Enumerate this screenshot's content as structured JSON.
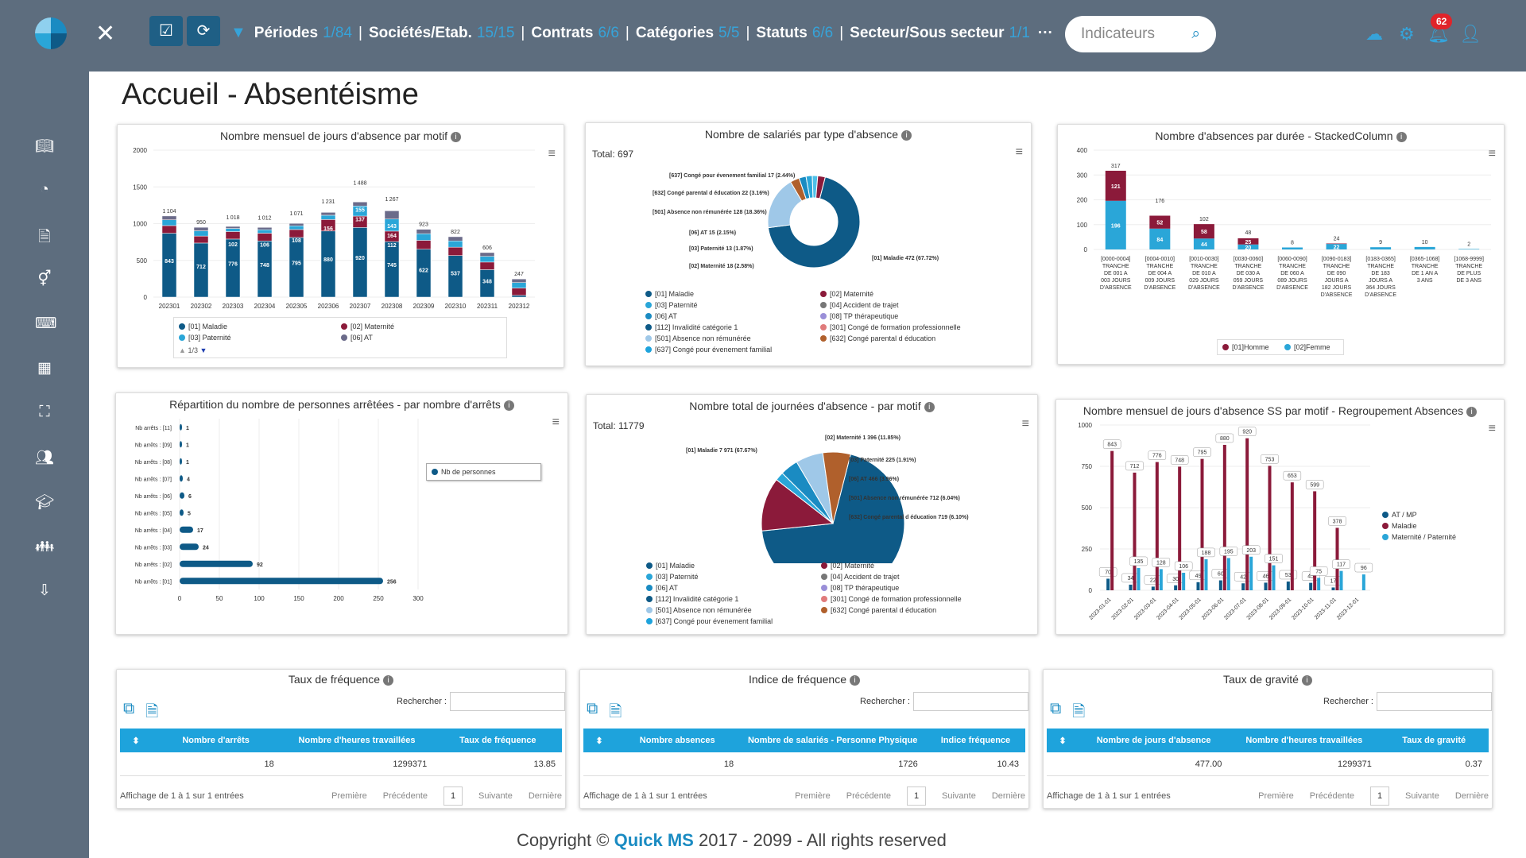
{
  "topbar": {
    "filters": [
      {
        "label": "Périodes",
        "count": "1/84"
      },
      {
        "label": "Sociétés/Etab.",
        "count": "15/15"
      },
      {
        "label": "Contrats",
        "count": "6/6"
      },
      {
        "label": "Catégories",
        "count": "5/5"
      },
      {
        "label": "Statuts",
        "count": "6/6"
      },
      {
        "label": "Secteur/Sous secteur",
        "count": "1/1"
      }
    ],
    "more": "···",
    "search_placeholder": "Indicateurs",
    "notif_count": "62"
  },
  "page_title": "Accueil - Absentéisme",
  "footer": {
    "prefix": "Copyright ©",
    "brand": "Quick MS",
    "suffix": "2017 - 2099 - All rights reserved"
  },
  "panels": {
    "p1": {
      "title": "Nombre mensuel de jours d'absence par motif",
      "legend": [
        "[01] Maladie",
        "[02] Maternité",
        "[03] Paternité",
        "[06] AT"
      ],
      "legend_pager": "1/3"
    },
    "p2": {
      "title": "Nombre de salariés par type d'absence",
      "total": "Total: 697"
    },
    "p3": {
      "title": "Nombre d'absences par durée - StackedColumn",
      "legend": [
        "[01]Homme",
        "[02]Femme"
      ]
    },
    "p4": {
      "title": "Répartition du nombre de personnes arrêtées - par nombre d'arrêts",
      "legend": [
        "Nb de personnes"
      ]
    },
    "p5": {
      "title": "Nombre total de journées d'absence - par motif",
      "total": "Total: 11779"
    },
    "p6": {
      "title": "Nombre mensuel de jours d'absence SS par motif - Regroupement Absences",
      "legend": [
        "AT / MP",
        "Maladie",
        "Maternité / Paternité"
      ]
    }
  },
  "pie_legend": [
    "[01] Maladie",
    "[02] Maternité",
    "[03] Paternité",
    "[04] Accident de trajet",
    "[06] AT",
    "[08] TP thérapeutique",
    "[112] Invalidité catégorie 1",
    "[301] Congé de formation professionnelle",
    "[501] Absence non rémunérée",
    "[632] Congé parental d éducation",
    "[637] Congé pour évenement familial"
  ],
  "tables": [
    {
      "title": "Taux de fréquence",
      "search_label": "Rechercher :",
      "columns": [
        "Nombre d'arrêts",
        "Nombre d'heures travaillées",
        "Taux de fréquence"
      ],
      "row": [
        "18",
        "1299371",
        "13.85"
      ],
      "info": "Affichage de 1 à 1 sur 1 entrées",
      "pager": [
        "Première",
        "Précédente",
        "1",
        "Suivante",
        "Dernière"
      ]
    },
    {
      "title": "Indice de fréquence",
      "search_label": "Rechercher :",
      "columns": [
        "Nombre absences",
        "Nombre de salariés - Personne Physique",
        "Indice fréquence"
      ],
      "row": [
        "18",
        "1726",
        "10.43"
      ],
      "info": "Affichage de 1 à 1 sur 1 entrées",
      "pager": [
        "Première",
        "Précédente",
        "1",
        "Suivante",
        "Dernière"
      ]
    },
    {
      "title": "Taux de gravité",
      "search_label": "Rechercher :",
      "columns": [
        "Nombre de jours d'absence",
        "Nombre d'heures travaillées",
        "Taux de gravité"
      ],
      "row": [
        "477.00",
        "1299371",
        "0.37"
      ],
      "info": "Affichage de 1 à 1 sur 1 entrées",
      "pager": [
        "Première",
        "Précédente",
        "1",
        "Suivante",
        "Dernière"
      ]
    }
  ],
  "colors": {
    "maladie": "#0e5a87",
    "maternite": "#8b1a3a",
    "paternite": "#2aa6d8",
    "at": "#6b6b8a",
    "homme": "#8b1a3a",
    "femme": "#2aa6d8"
  },
  "chart_data": [
    {
      "type": "bar",
      "title": "Nombre mensuel de jours d'absence par motif",
      "categories": [
        "202301",
        "202302",
        "202303",
        "202304",
        "202305",
        "202306",
        "202307",
        "202308",
        "202309",
        "202310",
        "202311",
        "202312"
      ],
      "totals": [
        1104,
        950,
        1018,
        1012,
        1071,
        1231,
        1488,
        1267,
        923,
        822,
        606,
        247
      ],
      "series": [
        {
          "name": "[01] Maladie",
          "values": [
            843,
            712,
            776,
            748,
            795,
            880,
            920,
            745,
            622,
            537,
            348,
            null
          ]
        },
        {
          "name": "[02] Maternité",
          "values": [
            null,
            null,
            102,
            106,
            108,
            156,
            155,
            143,
            null,
            null,
            null,
            null
          ]
        },
        {
          "name": "[03] Paternité",
          "values": [
            null,
            null,
            null,
            null,
            null,
            null,
            137,
            164,
            null,
            null,
            null,
            null
          ]
        },
        {
          "name": "[06] AT",
          "values": [
            null,
            null,
            null,
            null,
            null,
            null,
            null,
            112,
            null,
            null,
            null,
            null
          ]
        }
      ],
      "ylim": [
        0,
        2000
      ]
    },
    {
      "type": "pie",
      "title": "Nombre de salariés par type d'absence",
      "labels": [
        "[01] Maladie",
        "[501] Absence non rémunérée",
        "[632] Congé parental d éducation",
        "[637] Congé pour évenement familial",
        "[06] AT",
        "[03] Paternité",
        "[02] Maternité"
      ],
      "values": [
        472,
        128,
        22,
        17,
        15,
        13,
        18
      ],
      "annotations": [
        "[01] Maladie 472 (67.72%)",
        "[501] Absence non rémunérée 128 (18.36%)",
        "[632] Congé parental d éducation 22 (3.16%)",
        "[637] Congé pour évenement familial 17 (2.44%)",
        "[06] AT 15 (2.15%)",
        "[03] Paternité 13 (1.87%)",
        "[02] Maternité 18 (2.58%)"
      ]
    },
    {
      "type": "bar",
      "title": "Nombre d'absences par durée - StackedColumn",
      "categories": [
        "[0000-0004] TRANCHE DE 001 A 003 JOURS D'ABSENCE",
        "[0004-0010] TRANCHE DE 004 A 009 JOURS D'ABSENCE",
        "[0010-0030] TRANCHE DE 010 A 029 JOURS D'ABSENCE",
        "[0030-0060] TRANCHE DE 030 A 059 JOURS D'ABSENCE",
        "[0060-0090] TRANCHE DE 060 A 089 JOURS D'ABSENCE",
        "[0090-0183] TRANCHE DE 090 JOURS A 182 JOURS D'ABSENCE",
        "[0183-0365] TRANCHE DE 183 JOURS A 364 JOURS D'ABSENCE",
        "[0365-1068] TRANCHE DE 1 AN A 3 ANS",
        "[1068-9999] TRANCHE DE PLUS DE 3 ANS"
      ],
      "totals": [
        317,
        176,
        102,
        48,
        8,
        24,
        9,
        10,
        2
      ],
      "series": [
        {
          "name": "[01]Homme",
          "values": [
            121,
            52,
            58,
            25,
            null,
            null,
            null,
            null,
            null
          ]
        },
        {
          "name": "[02]Femme",
          "values": [
            196,
            84,
            44,
            20,
            null,
            22,
            null,
            null,
            null
          ]
        }
      ],
      "ylim": [
        0,
        400
      ]
    },
    {
      "type": "bar",
      "orientation": "horizontal",
      "title": "Répartition du nombre de personnes arrêtées - par nombre d'arrêts",
      "categories": [
        "Nb arrêts : [11]",
        "Nb arrêts : [09]",
        "Nb arrêts : [08]",
        "Nb arrêts : [07]",
        "Nb arrêts : [06]",
        "Nb arrêts : [05]",
        "Nb arrêts : [04]",
        "Nb arrêts : [03]",
        "Nb arrêts : [02]",
        "Nb arrêts : [01]"
      ],
      "values": [
        1,
        1,
        1,
        4,
        6,
        5,
        17,
        24,
        92,
        256
      ],
      "xlim": [
        0,
        300
      ],
      "xticks": [
        "0",
        "50",
        "100",
        "150",
        "200",
        "250",
        "300"
      ]
    },
    {
      "type": "pie",
      "title": "Nombre total de journées d'absence - par motif",
      "labels": [
        "[01] Maladie",
        "[02] Maternité",
        "[03] Paternité",
        "[06] AT",
        "[501] Absence non rémunérée",
        "[632] Congé parental d éducation"
      ],
      "values": [
        7971,
        1396,
        225,
        466,
        712,
        719
      ],
      "annotations": [
        "[01] Maladie 7 971 (67.67%)",
        "[02] Maternité 1 396 (11.85%)",
        "[03] Paternité 225 (1.91%)",
        "[06] AT 466 (3.96%)",
        "[501] Absence non rémunérée 712 (6.04%)",
        "[632] Congé parental d éducation 719 (6.10%)"
      ]
    },
    {
      "type": "bar",
      "title": "Nombre mensuel de jours d'absence SS par motif - Regroupement Absences",
      "categories": [
        "2023-01-01",
        "2023-02-01",
        "2023-03-01",
        "2023-04-01",
        "2023-05-01",
        "2023-06-01",
        "2023-07-01",
        "2023-08-01",
        "2023-09-01",
        "2023-10-01",
        "2023-11-01",
        "2023-12-01"
      ],
      "series": [
        {
          "name": "AT / MP",
          "values": [
            70,
            34,
            22,
            30,
            49,
            60,
            42,
            46,
            53,
            45,
            17,
            null
          ]
        },
        {
          "name": "Maladie",
          "values": [
            843,
            712,
            776,
            748,
            795,
            880,
            920,
            753,
            653,
            599,
            378,
            null
          ]
        },
        {
          "name": "Maternité / Paternité",
          "values": [
            null,
            135,
            128,
            106,
            188,
            195,
            203,
            151,
            null,
            75,
            117,
            96
          ]
        }
      ],
      "ylim": [
        0,
        1000
      ],
      "yticks": [
        "0",
        "250",
        "500",
        "750",
        "1000"
      ]
    }
  ]
}
